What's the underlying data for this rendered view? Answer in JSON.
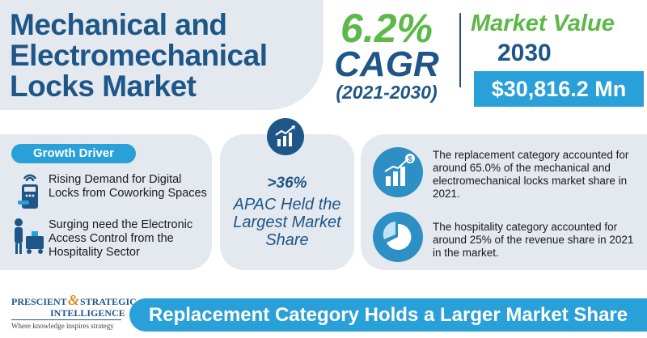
{
  "title": "Mechanical and Electromechanical Locks Market",
  "cagr": {
    "value": "6.2%",
    "label": "CAGR",
    "period": "(2021-2030)"
  },
  "market_value": {
    "title": "Market Value",
    "year": "2030",
    "amount": "$30,816.2 Mn"
  },
  "growth_driver": {
    "badge": "Growth Driver",
    "items": [
      {
        "text": "Rising Demand for Digital Locks from Coworking Spaces",
        "icon": "smart-lock-icon"
      },
      {
        "text": "Surging need the Electronic Access Control from the Hospitality Sector",
        "icon": "hotel-porter-icon"
      }
    ]
  },
  "apac": {
    "percent": ">36%",
    "text": "APAC Held the Largest Market Share",
    "icon": "growth-chart-icon"
  },
  "stats": [
    {
      "text": "The replacement category accounted for around 65.0% of the mechanical and electromechanical locks market share in 2021.",
      "icon": "money-growth-icon"
    },
    {
      "text": "The hospitality category accounted for around 25% of the revenue share in 2021 in the market.",
      "icon": "pie-chart-icon"
    }
  ],
  "logo": {
    "line1": "PRESCIENT",
    "amp": "&",
    "line1b": "STRATEGIC",
    "line2": "INTELLIGENCE",
    "tagline": "Where knowledge inspires strategy"
  },
  "banner": "Replacement Category Holds a Larger Market Share",
  "colors": {
    "navy": "#1f5688",
    "green": "#5cb847",
    "blue": "#2aa0d8",
    "panel": "#e3e9ef",
    "accent": "#e08a1e"
  }
}
